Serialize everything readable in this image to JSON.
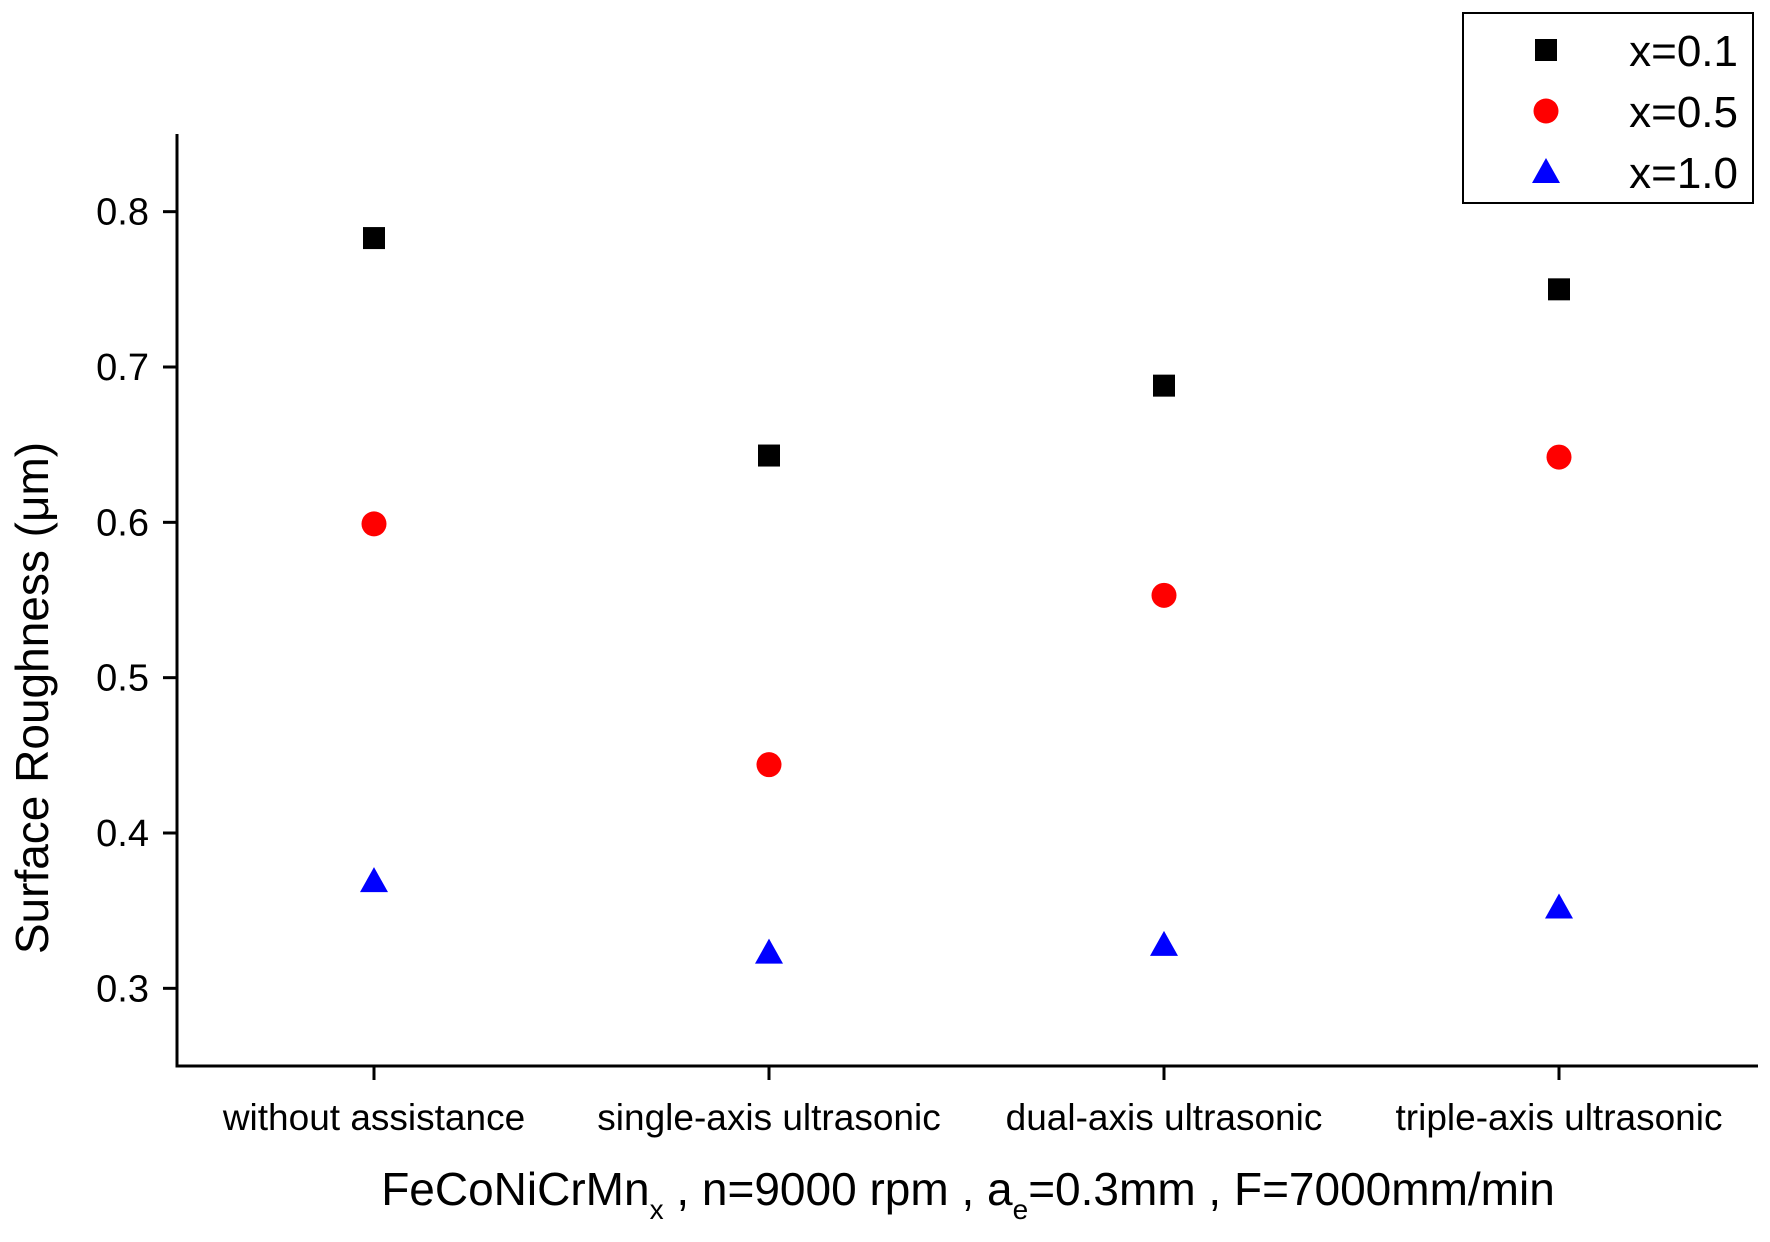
{
  "chart_data": {
    "type": "scatter",
    "categories": [
      "without assistance",
      "single-axis ultrasonic",
      "dual-axis ultrasonic",
      "triple-axis ultrasonic"
    ],
    "series": [
      {
        "name": "x=0.1",
        "marker": "square",
        "color": "#000000",
        "values": [
          0.783,
          0.643,
          0.688,
          0.75
        ]
      },
      {
        "name": "x=0.5",
        "marker": "circle",
        "color": "#ff0000",
        "values": [
          0.599,
          0.444,
          0.553,
          0.642
        ]
      },
      {
        "name": "x=1.0",
        "marker": "triangle",
        "color": "#0000ff",
        "values": [
          0.369,
          0.323,
          0.328,
          0.352
        ]
      }
    ],
    "ylabel": "Surface Roughness (μm)",
    "xlabel": {
      "base": "FeCoNiCrMn",
      "base_sub": "x",
      "middle": " , n=9000 rpm , a",
      "middle_sub": "e",
      "end": "=0.3mm , F=7000mm/min"
    },
    "yticks": [
      "0.3",
      "0.4",
      "0.5",
      "0.6",
      "0.7",
      "0.8"
    ],
    "ylim": [
      0.25,
      0.85
    ],
    "grid": false,
    "legend_position": "top-right"
  }
}
